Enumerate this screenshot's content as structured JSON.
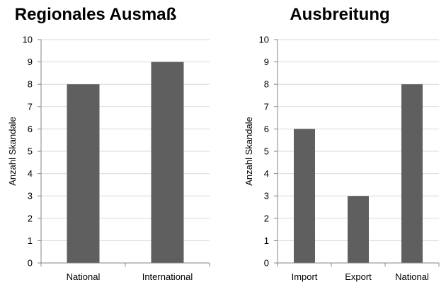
{
  "chart_data": [
    {
      "type": "bar",
      "title": "Regionales Ausmaß",
      "ylabel": "Anzahl Skandale",
      "xlabel": "",
      "categories": [
        "National",
        "International"
      ],
      "values": [
        8,
        9
      ],
      "ylim": [
        0,
        10
      ],
      "yticks": [
        "0",
        "1",
        "2",
        "3",
        "4",
        "5",
        "6",
        "7",
        "8",
        "9",
        "10"
      ],
      "grid": true,
      "bar_color": "#5f5f5f"
    },
    {
      "type": "bar",
      "title": "Ausbreitung",
      "ylabel": "Anzahl Skandale",
      "xlabel": "",
      "categories": [
        "Import",
        "Export",
        "National"
      ],
      "values": [
        6,
        3,
        8
      ],
      "ylim": [
        0,
        10
      ],
      "yticks": [
        "0",
        "1",
        "2",
        "3",
        "4",
        "5",
        "6",
        "7",
        "8",
        "9",
        "10"
      ],
      "grid": true,
      "bar_color": "#5f5f5f"
    }
  ]
}
